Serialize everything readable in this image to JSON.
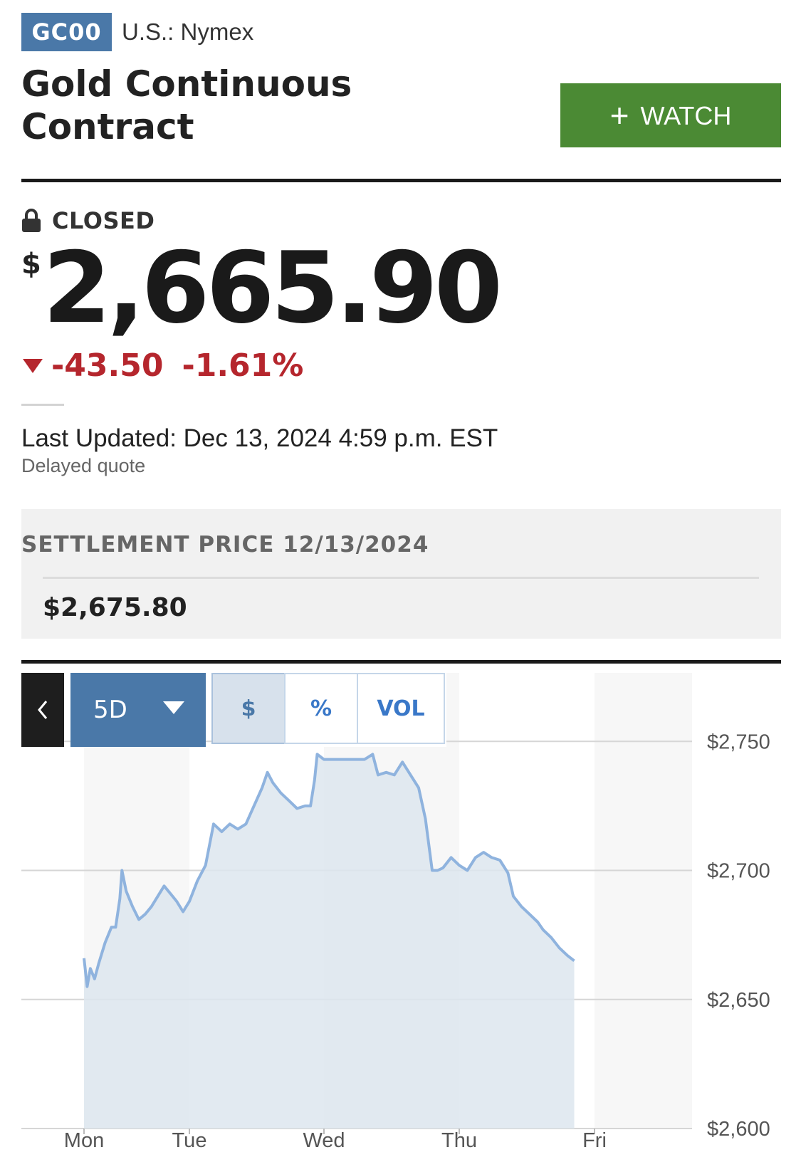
{
  "header": {
    "ticker": "GC00",
    "exchange": "U.S.: Nymex",
    "title": "Gold Continuous Contract",
    "watch_label": "WATCH"
  },
  "quote": {
    "status": "CLOSED",
    "currency_symbol": "$",
    "price": "2,665.90",
    "change": "-43.50",
    "change_percent": "-1.61%",
    "change_direction": "down",
    "last_updated": "Last Updated: Dec 13, 2024 4:59 p.m. EST",
    "delay_note": "Delayed quote"
  },
  "settlement": {
    "label": "SETTLEMENT PRICE 12/13/2024",
    "value": "$2,675.80"
  },
  "chart_controls": {
    "range": "5D",
    "modes": [
      "$",
      "%",
      "VOL"
    ],
    "active_mode": "$"
  },
  "colors": {
    "brand_blue": "#4a78a8",
    "watch_green": "#4b8a34",
    "negative_red": "#b5262d",
    "line_blue": "#8fb3de",
    "area_fill": "#dde6ef"
  },
  "chart_data": {
    "type": "area",
    "x_labels": [
      "Mon",
      "Tue",
      "Wed",
      "Thu",
      "Fri"
    ],
    "y_ticks": [
      "$2,750",
      "$2,700",
      "$2,650",
      "$2,600"
    ],
    "ylim": [
      2600,
      2760
    ],
    "series": [
      {
        "points": [
          [
            0.0,
            2666
          ],
          [
            0.03,
            2655
          ],
          [
            0.06,
            2662
          ],
          [
            0.1,
            2658
          ],
          [
            0.14,
            2664
          ],
          [
            0.2,
            2672
          ],
          [
            0.26,
            2678
          ],
          [
            0.3,
            2678
          ],
          [
            0.34,
            2689
          ],
          [
            0.36,
            2700
          ],
          [
            0.4,
            2692
          ],
          [
            0.46,
            2686
          ],
          [
            0.52,
            2681
          ],
          [
            0.58,
            2683
          ],
          [
            0.64,
            2686
          ],
          [
            0.7,
            2690
          ],
          [
            0.76,
            2694
          ],
          [
            0.82,
            2691
          ],
          [
            0.88,
            2688
          ],
          [
            0.94,
            2684
          ],
          [
            1.0,
            2688
          ],
          [
            1.06,
            2696
          ],
          [
            1.12,
            2702
          ],
          [
            1.18,
            2718
          ],
          [
            1.24,
            2715
          ],
          [
            1.3,
            2718
          ],
          [
            1.36,
            2716
          ],
          [
            1.42,
            2718
          ],
          [
            1.48,
            2725
          ],
          [
            1.54,
            2732
          ],
          [
            1.58,
            2738
          ],
          [
            1.62,
            2734
          ],
          [
            1.68,
            2730
          ],
          [
            1.74,
            2727
          ],
          [
            1.8,
            2724
          ],
          [
            1.86,
            2725
          ],
          [
            1.9,
            2725
          ],
          [
            1.93,
            2735
          ],
          [
            1.95,
            2745
          ],
          [
            2.0,
            2743
          ],
          [
            2.1,
            2743
          ],
          [
            2.2,
            2743
          ],
          [
            2.3,
            2743
          ],
          [
            2.36,
            2745
          ],
          [
            2.4,
            2737
          ],
          [
            2.46,
            2738
          ],
          [
            2.52,
            2737
          ],
          [
            2.58,
            2742
          ],
          [
            2.64,
            2737
          ],
          [
            2.7,
            2732
          ],
          [
            2.75,
            2720
          ],
          [
            2.8,
            2700
          ],
          [
            2.84,
            2700
          ],
          [
            2.88,
            2701
          ],
          [
            2.94,
            2705
          ],
          [
            3.0,
            2702
          ],
          [
            3.06,
            2700
          ],
          [
            3.12,
            2705
          ],
          [
            3.18,
            2707
          ],
          [
            3.24,
            2705
          ],
          [
            3.3,
            2704
          ],
          [
            3.36,
            2699
          ],
          [
            3.4,
            2690
          ],
          [
            3.46,
            2686
          ],
          [
            3.52,
            2683
          ],
          [
            3.58,
            2680
          ],
          [
            3.62,
            2677
          ],
          [
            3.68,
            2674
          ],
          [
            3.74,
            2670
          ],
          [
            3.8,
            2667
          ],
          [
            3.85,
            2665
          ]
        ]
      }
    ]
  }
}
